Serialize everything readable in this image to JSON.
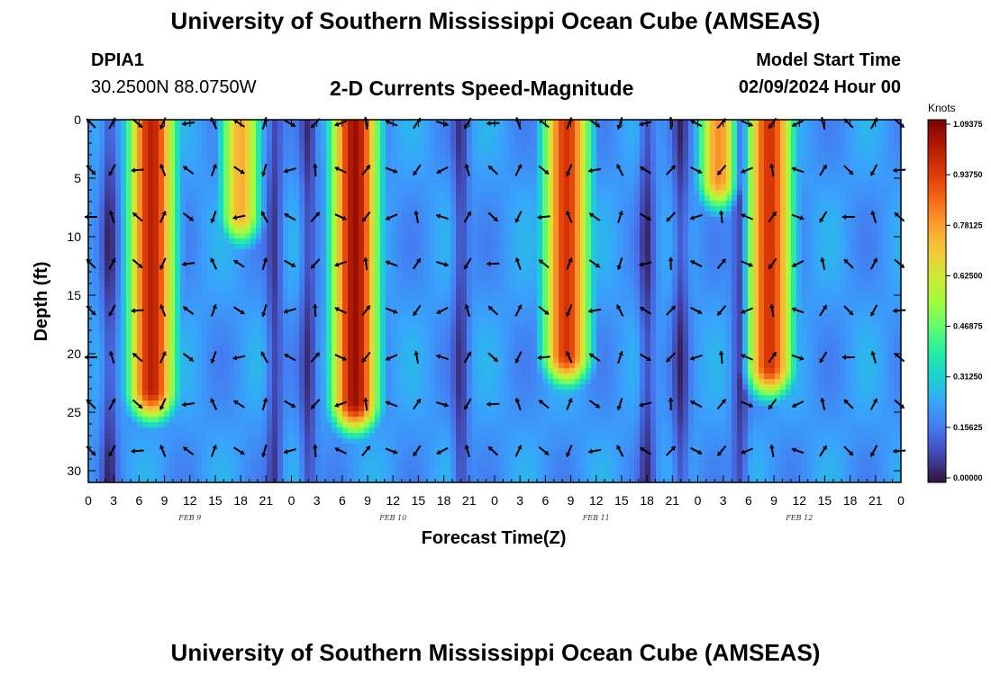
{
  "header": {
    "title": "University of Southern Mississippi Ocean Cube (AMSEAS)",
    "station": "DPIA1",
    "coords": "30.2500N  88.0750W",
    "plot_title": "2-D Currents Speed-Magnitude",
    "model_start_label": "Model Start Time",
    "model_start_value": "02/09/2024 Hour 00"
  },
  "footer": {
    "title": "University of Southern Mississippi Ocean Cube (AMSEAS)"
  },
  "colors": {
    "ramp": [
      "#30123b",
      "#4145ab",
      "#4675ed",
      "#39a2fc",
      "#1bcfd4",
      "#24eca6",
      "#61fc6c",
      "#a4fc3b",
      "#d1e834",
      "#f3c63a",
      "#fe9b2d",
      "#f36315",
      "#d93806",
      "#b11901",
      "#7a0403"
    ]
  },
  "chart_data": {
    "type": "heatmap",
    "title": "2-D Currents Speed-Magnitude",
    "xlabel": "Forecast Time(Z)",
    "ylabel": "Depth (ft)",
    "x_hours_range": [
      0,
      96
    ],
    "x_tick_labels": [
      "0",
      "3",
      "6",
      "9",
      "12",
      "15",
      "18",
      "21",
      "0",
      "3",
      "6",
      "9",
      "12",
      "15",
      "18",
      "21",
      "0",
      "3",
      "6",
      "9",
      "12",
      "15",
      "18",
      "21",
      "0",
      "3",
      "6",
      "9",
      "12",
      "15",
      "18",
      "21",
      "0"
    ],
    "date_labels": [
      "FEB 9",
      "FEB 10",
      "FEB 11",
      "FEB 12"
    ],
    "ylim": [
      0,
      31
    ],
    "y_ticks": [
      0,
      5,
      10,
      15,
      20,
      25,
      30
    ],
    "colorbar": {
      "unit": "Knots",
      "range": [
        0,
        1.09375
      ],
      "tick_labels": [
        "1.09375",
        "0.93750",
        "0.78125",
        "0.62500",
        "0.46875",
        "0.31250",
        "0.15625",
        "0.00000"
      ]
    },
    "speed_peaks": [
      {
        "hour": 7.5,
        "speed": 1.0,
        "max_depth_ft": 23
      },
      {
        "hour": 31.5,
        "speed": 1.05,
        "max_depth_ft": 24
      },
      {
        "hour": 56.5,
        "speed": 0.95,
        "max_depth_ft": 20
      },
      {
        "hour": 80.5,
        "speed": 0.95,
        "max_depth_ft": 21
      },
      {
        "hour": 18,
        "speed": 0.75,
        "max_depth_ft": 8
      },
      {
        "hour": 74.5,
        "speed": 0.8,
        "max_depth_ft": 5
      }
    ],
    "vector_columns_hours": [
      0,
      2.5,
      5.5,
      8.5,
      11.5,
      14.5,
      17.5,
      20.5,
      23.5,
      26.5,
      29.5,
      32.5,
      35.5,
      38.5,
      41.5,
      44.5,
      47.5,
      50.5,
      53.5,
      56.5,
      59.5,
      62.5,
      65.5,
      68.5,
      71.5,
      74.5,
      77.5,
      80.5,
      83.5,
      86.5,
      89.5,
      92.5,
      95.5
    ],
    "vector_rows_depth_ft": [
      0,
      4,
      8,
      12,
      16,
      20,
      24,
      28
    ]
  }
}
